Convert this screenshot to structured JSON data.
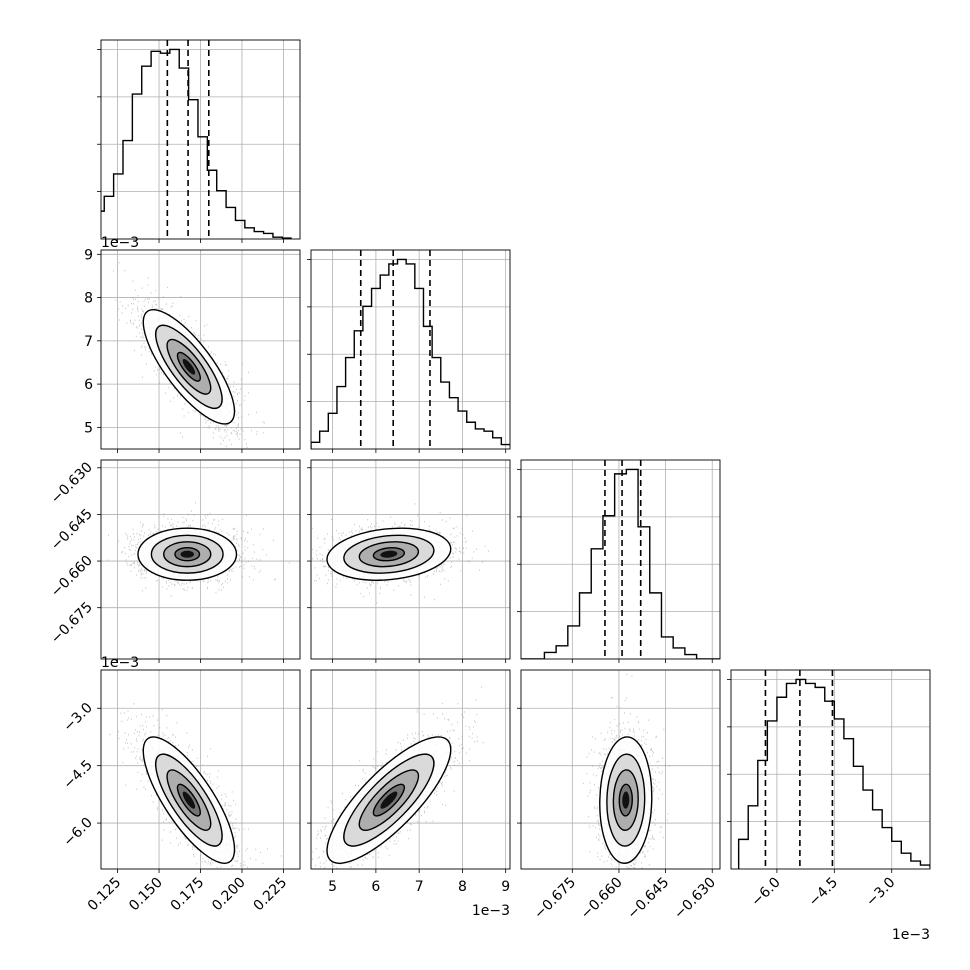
{
  "chart_data": {
    "type": "corner",
    "exponent_label": "1e−3",
    "dim_count": 4,
    "histograms": [
      {
        "param_index": 0,
        "bin_range": [
          0.1,
          0.23
        ],
        "counts": [
          0.4,
          0.8,
          1.5,
          2.3,
          3.5,
          5.3,
          7.8,
          9.3,
          10.1,
          10.0,
          10.2,
          9.2,
          7.5,
          5.5,
          3.7,
          2.6,
          1.7,
          1.0,
          0.6,
          0.4,
          0.3,
          0.1,
          0.05
        ],
        "quantiles": [
          0.155,
          0.1675,
          0.18
        ]
      },
      {
        "param_index": 1,
        "bin_range": [
          4.5,
          9.1
        ],
        "counts": [
          0.3,
          0.8,
          1.6,
          2.8,
          4.1,
          5.3,
          6.4,
          7.2,
          7.8,
          8.3,
          8.5,
          8.3,
          7.2,
          5.5,
          4.1,
          3.0,
          2.3,
          1.7,
          1.2,
          0.9,
          0.8,
          0.5,
          0.2
        ],
        "quantiles": [
          5.65,
          6.4,
          7.25
        ]
      },
      {
        "param_index": 2,
        "bin_range": [
          -0.6915,
          -0.6275
        ],
        "counts": [
          0,
          0,
          0.03,
          0.06,
          0.15,
          0.3,
          0.5,
          0.65,
          0.84,
          0.86,
          0.6,
          0.3,
          0.1,
          0.05,
          0.02,
          0,
          0
        ],
        "quantiles": [
          -0.6645,
          -0.659,
          -0.653
        ]
      },
      {
        "param_index": 3,
        "bin_range": [
          -7.0,
          -1.5
        ],
        "counts": [
          1.5,
          3.2,
          5.5,
          7.5,
          8.7,
          9.4,
          9.6,
          9.4,
          9.2,
          8.5,
          7.6,
          6.6,
          5.2,
          4.0,
          3.0,
          2.1,
          1.4,
          0.8,
          0.4,
          0.2,
          0.1,
          0.05
        ],
        "quantiles": [
          -6.3,
          -5.4,
          -4.55
        ]
      }
    ],
    "joint": [
      {
        "row": 1,
        "col": 0,
        "center": [
          0.168,
          6.4
        ],
        "sigma": [
          0.0125,
          0.6
        ],
        "rho": -0.78
      },
      {
        "row": 2,
        "col": 0,
        "center": [
          0.167,
          -0.6578
        ],
        "sigma": [
          0.0135,
          0.0038
        ],
        "rho": 0.0
      },
      {
        "row": 2,
        "col": 1,
        "center": [
          6.3,
          -0.6578
        ],
        "sigma": [
          0.65,
          0.0038
        ],
        "rho": 0.2
      },
      {
        "row": 3,
        "col": 0,
        "center": [
          0.168,
          -5.4
        ],
        "sigma": [
          0.0125,
          0.75
        ],
        "rho": -0.78
      },
      {
        "row": 3,
        "col": 1,
        "center": [
          6.3,
          -5.4
        ],
        "sigma": [
          0.65,
          0.75
        ],
        "rho": 0.8
      },
      {
        "row": 3,
        "col": 2,
        "center": [
          -0.6578,
          -5.4
        ],
        "sigma": [
          0.0038,
          0.75
        ],
        "rho": 0.05
      }
    ],
    "axes": [
      {
        "range": [
          0.115,
          0.235
        ],
        "ticks": [
          0.125,
          0.15,
          0.175,
          0.2,
          0.225
        ],
        "tick_labels": [
          "0.125",
          "0.150",
          "0.175",
          "0.200",
          "0.225"
        ],
        "offset_label": ""
      },
      {
        "range": [
          4.5,
          9.1
        ],
        "ticks": [
          5,
          6,
          7,
          8,
          9
        ],
        "tick_labels": [
          "5",
          "6",
          "7",
          "8",
          "9"
        ],
        "offset_label": "1e−3"
      },
      {
        "range": [
          -0.6915,
          -0.6275
        ],
        "ticks": [
          -0.675,
          -0.66,
          -0.645,
          -0.63
        ],
        "tick_labels": [
          "−0.675",
          "−0.660",
          "−0.645",
          "−0.630"
        ],
        "offset_label": ""
      },
      {
        "range": [
          -7.2,
          -2.0
        ],
        "hist_range": [
          -7.0,
          -1.5
        ],
        "ticks": [
          -6.0,
          -4.5,
          -3.0
        ],
        "tick_labels": [
          "−6.0",
          "−4.5",
          "−3.0"
        ],
        "offset_label": "1e−3"
      }
    ],
    "grid": true,
    "title": "",
    "xlabel": "",
    "ylabel": ""
  }
}
